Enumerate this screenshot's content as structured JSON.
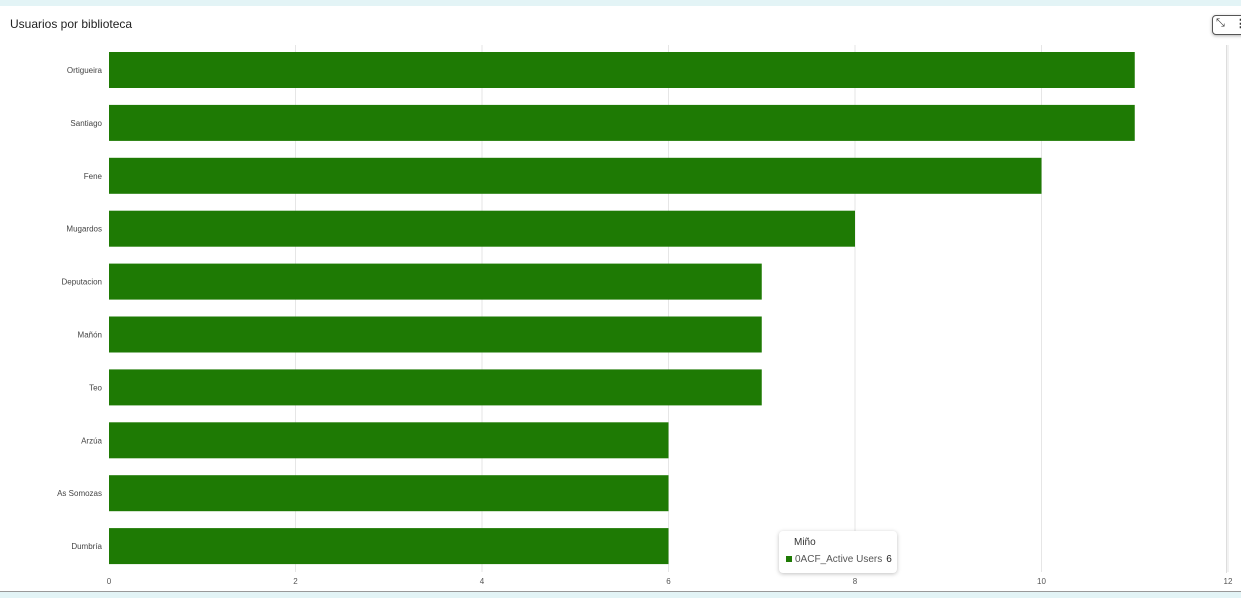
{
  "title": "Usuarios por biblioteca",
  "toolbar": {
    "collapse_icon": "collapse-icon",
    "menu_icon": "more-vertical-icon"
  },
  "tooltip": {
    "title": "Miño",
    "series": "0ACF_Active Users",
    "value": "6"
  },
  "chart_data": {
    "type": "bar",
    "orientation": "horizontal",
    "title": "Usuarios por biblioteca",
    "categories": [
      "Ortigueira",
      "Santiago",
      "Fene",
      "Mugardos",
      "Deputacion",
      "Mañón",
      "Teo",
      "Arzúa",
      "As Somozas",
      "Dumbría"
    ],
    "series": [
      {
        "name": "0ACF_Active Users",
        "color": "#1e7a04",
        "values": [
          11,
          11,
          10,
          8,
          7,
          7,
          7,
          6,
          6,
          6
        ]
      }
    ],
    "xlim": [
      0,
      12
    ],
    "xticks": [
      "0",
      "2",
      "4",
      "6",
      "8",
      "10",
      "12"
    ],
    "grid": true
  }
}
